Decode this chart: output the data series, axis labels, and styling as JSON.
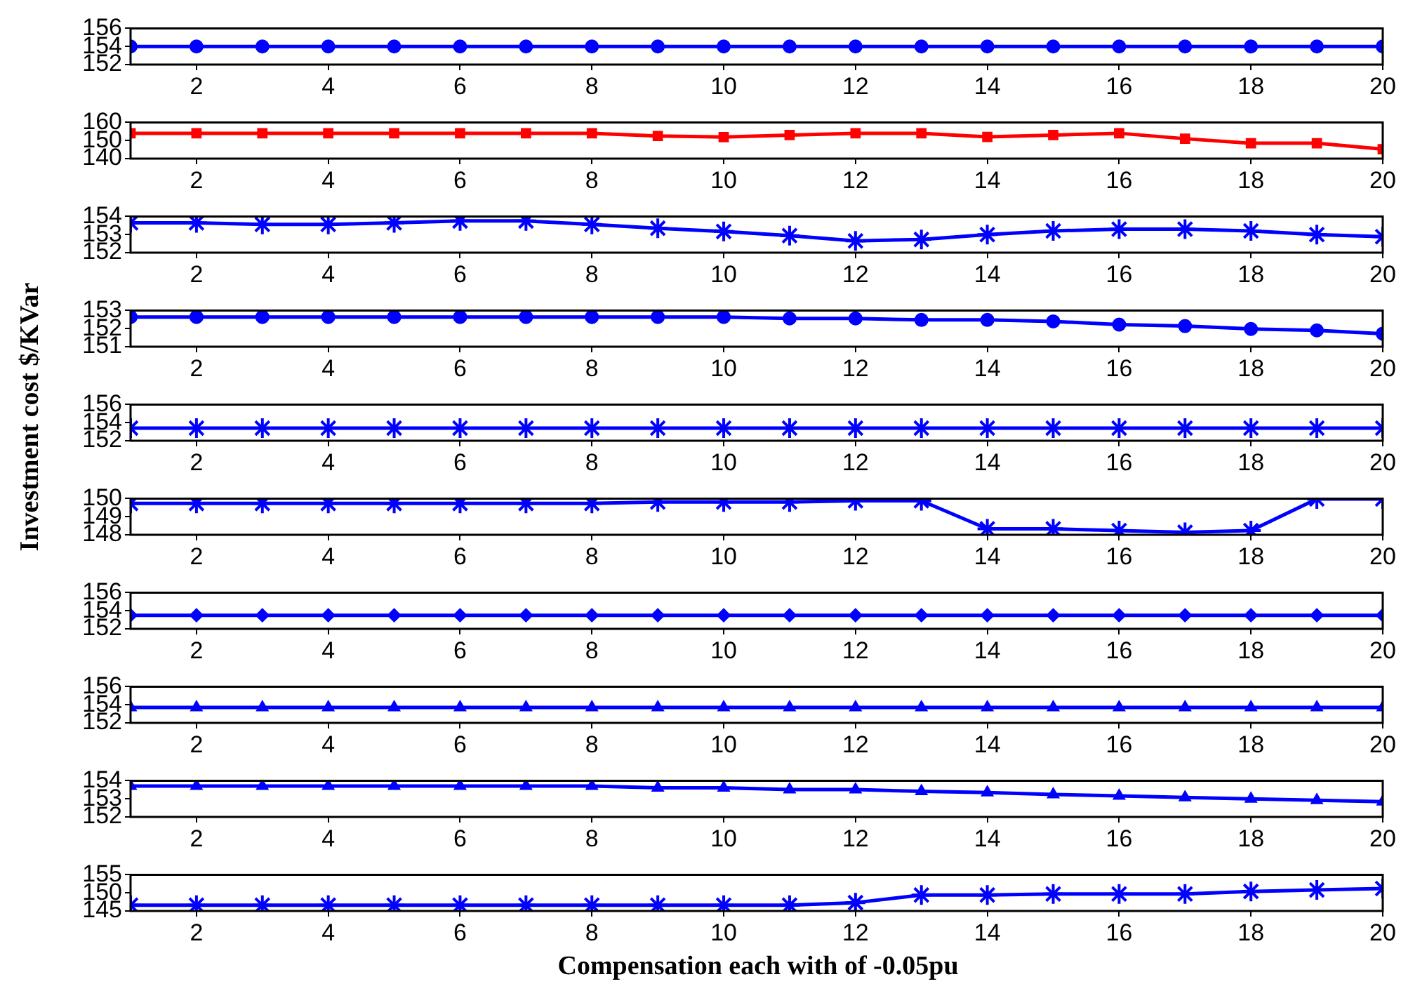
{
  "chart_data": [
    {
      "type": "line",
      "x": [
        1,
        2,
        3,
        4,
        5,
        6,
        7,
        8,
        9,
        10,
        11,
        12,
        13,
        14,
        15,
        16,
        17,
        18,
        19,
        20
      ],
      "values": [
        154,
        154,
        154,
        154,
        154,
        154,
        154,
        154,
        154,
        154,
        154,
        154,
        154,
        154,
        154,
        154,
        154,
        154,
        154,
        154
      ],
      "color": "#0000ff",
      "marker": "circle",
      "xlim": [
        1,
        20
      ],
      "xticks": [
        2,
        4,
        6,
        8,
        10,
        12,
        14,
        16,
        18,
        20
      ],
      "ylim": [
        152,
        156
      ],
      "yticks": [
        152,
        154,
        156
      ]
    },
    {
      "type": "line",
      "x": [
        1,
        2,
        3,
        4,
        5,
        6,
        7,
        8,
        9,
        10,
        11,
        12,
        13,
        14,
        15,
        16,
        17,
        18,
        19,
        20
      ],
      "values": [
        154,
        154,
        154,
        154,
        154,
        154,
        154,
        154,
        152.5,
        151.9,
        153,
        154,
        154,
        152,
        153,
        154,
        151,
        148.5,
        148.5,
        145.2
      ],
      "color": "#ff0000",
      "marker": "square",
      "xlim": [
        1,
        20
      ],
      "xticks": [
        2,
        4,
        6,
        8,
        10,
        12,
        14,
        16,
        18,
        20
      ],
      "ylim": [
        140,
        160
      ],
      "yticks": [
        140,
        150,
        160
      ]
    },
    {
      "type": "line",
      "x": [
        1,
        2,
        3,
        4,
        5,
        6,
        7,
        8,
        9,
        10,
        11,
        12,
        13,
        14,
        15,
        16,
        17,
        18,
        19,
        20
      ],
      "values": [
        153.65,
        153.65,
        153.56,
        153.56,
        153.65,
        153.75,
        153.75,
        153.56,
        153.35,
        153.17,
        152.94,
        152.65,
        152.73,
        153.0,
        153.2,
        153.3,
        153.3,
        153.2,
        153.0,
        152.88
      ],
      "color": "#0000ff",
      "marker": "cross",
      "xlim": [
        1,
        20
      ],
      "xticks": [
        2,
        4,
        6,
        8,
        10,
        12,
        14,
        16,
        18,
        20
      ],
      "ylim": [
        152,
        154
      ],
      "yticks": [
        152,
        153,
        154
      ]
    },
    {
      "type": "line",
      "x": [
        1,
        2,
        3,
        4,
        5,
        6,
        7,
        8,
        9,
        10,
        11,
        12,
        13,
        14,
        15,
        16,
        17,
        18,
        19,
        20
      ],
      "values": [
        152.64,
        152.64,
        152.64,
        152.64,
        152.64,
        152.64,
        152.64,
        152.64,
        152.64,
        152.64,
        152.56,
        152.56,
        152.48,
        152.48,
        152.4,
        152.22,
        152.14,
        151.98,
        151.9,
        151.72
      ],
      "color": "#0000ff",
      "marker": "circle",
      "xlim": [
        1,
        20
      ],
      "xticks": [
        2,
        4,
        6,
        8,
        10,
        12,
        14,
        16,
        18,
        20
      ],
      "ylim": [
        151,
        153
      ],
      "yticks": [
        151,
        152,
        153
      ]
    },
    {
      "type": "line",
      "x": [
        1,
        2,
        3,
        4,
        5,
        6,
        7,
        8,
        9,
        10,
        11,
        12,
        13,
        14,
        15,
        16,
        17,
        18,
        19,
        20
      ],
      "ylabel": "Investment cost $/KVar",
      "values": [
        153.4,
        153.4,
        153.4,
        153.4,
        153.4,
        153.4,
        153.4,
        153.4,
        153.4,
        153.4,
        153.4,
        153.4,
        153.4,
        153.4,
        153.4,
        153.4,
        153.4,
        153.4,
        153.4,
        153.4
      ],
      "color": "#0000ff",
      "marker": "cross",
      "xlim": [
        1,
        20
      ],
      "xticks": [
        2,
        4,
        6,
        8,
        10,
        12,
        14,
        16,
        18,
        20
      ],
      "ylim": [
        152,
        156
      ],
      "yticks": [
        152,
        154,
        156
      ]
    },
    {
      "type": "line",
      "x": [
        1,
        2,
        3,
        4,
        5,
        6,
        7,
        8,
        9,
        10,
        11,
        12,
        13,
        14,
        15,
        16,
        17,
        18,
        19,
        20
      ],
      "values": [
        149.73,
        149.73,
        149.73,
        149.73,
        149.73,
        149.73,
        149.73,
        149.73,
        149.81,
        149.81,
        149.81,
        149.88,
        149.88,
        148.33,
        148.33,
        148.23,
        148.14,
        148.23,
        149.98,
        149.98
      ],
      "color": "#0000ff",
      "marker": "cross",
      "xlim": [
        1,
        20
      ],
      "xticks": [
        2,
        4,
        6,
        8,
        10,
        12,
        14,
        16,
        18,
        20
      ],
      "ylim": [
        148,
        150
      ],
      "yticks": [
        148,
        149,
        150
      ]
    },
    {
      "type": "line",
      "x": [
        1,
        2,
        3,
        4,
        5,
        6,
        7,
        8,
        9,
        10,
        11,
        12,
        13,
        14,
        15,
        16,
        17,
        18,
        19,
        20
      ],
      "values": [
        153.5,
        153.5,
        153.5,
        153.5,
        153.5,
        153.5,
        153.5,
        153.5,
        153.5,
        153.5,
        153.5,
        153.5,
        153.5,
        153.5,
        153.5,
        153.5,
        153.5,
        153.5,
        153.5,
        153.5
      ],
      "color": "#0000ff",
      "marker": "diamond",
      "xlim": [
        1,
        20
      ],
      "xticks": [
        2,
        4,
        6,
        8,
        10,
        12,
        14,
        16,
        18,
        20
      ],
      "ylim": [
        152,
        156
      ],
      "yticks": [
        152,
        154,
        156
      ]
    },
    {
      "type": "line",
      "x": [
        1,
        2,
        3,
        4,
        5,
        6,
        7,
        8,
        9,
        10,
        11,
        12,
        13,
        14,
        15,
        16,
        17,
        18,
        19,
        20
      ],
      "values": [
        153.7,
        153.7,
        153.7,
        153.7,
        153.7,
        153.7,
        153.7,
        153.7,
        153.7,
        153.7,
        153.7,
        153.7,
        153.7,
        153.7,
        153.7,
        153.7,
        153.7,
        153.7,
        153.7,
        153.7
      ],
      "color": "#0000ff",
      "marker": "triangle",
      "xlim": [
        1,
        20
      ],
      "xticks": [
        2,
        4,
        6,
        8,
        10,
        12,
        14,
        16,
        18,
        20
      ],
      "ylim": [
        152,
        156
      ],
      "yticks": [
        152,
        154,
        156
      ]
    },
    {
      "type": "line",
      "x": [
        1,
        2,
        3,
        4,
        5,
        6,
        7,
        8,
        9,
        10,
        11,
        12,
        13,
        14,
        15,
        16,
        17,
        18,
        19,
        20
      ],
      "values": [
        153.71,
        153.71,
        153.71,
        153.71,
        153.71,
        153.71,
        153.71,
        153.71,
        153.61,
        153.61,
        153.51,
        153.51,
        153.41,
        153.35,
        153.24,
        153.16,
        153.08,
        153.0,
        152.92,
        152.84
      ],
      "color": "#0000ff",
      "marker": "triangle",
      "xlim": [
        1,
        20
      ],
      "xticks": [
        2,
        4,
        6,
        8,
        10,
        12,
        14,
        16,
        18,
        20
      ],
      "ylim": [
        152,
        154
      ],
      "yticks": [
        152,
        153,
        154
      ]
    },
    {
      "type": "line",
      "xlabel": "Compensation each with of -0.05pu",
      "x": [
        1,
        2,
        3,
        4,
        5,
        6,
        7,
        8,
        9,
        10,
        11,
        12,
        13,
        14,
        15,
        16,
        17,
        18,
        19,
        20
      ],
      "values": [
        146.6,
        146.6,
        146.6,
        146.6,
        146.6,
        146.6,
        146.6,
        146.6,
        146.6,
        146.6,
        146.6,
        147.3,
        149.4,
        149.4,
        149.7,
        149.7,
        149.7,
        150.4,
        150.8,
        151.2
      ],
      "color": "#0000ff",
      "marker": "cross",
      "xlim": [
        1,
        20
      ],
      "xticks": [
        2,
        4,
        6,
        8,
        10,
        12,
        14,
        16,
        18,
        20
      ],
      "ylim": [
        145,
        155
      ],
      "yticks": [
        145,
        150,
        155
      ]
    }
  ]
}
